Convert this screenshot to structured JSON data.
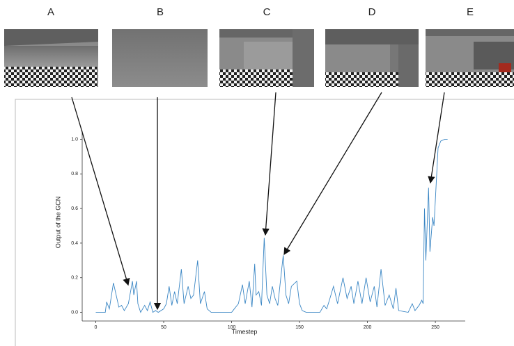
{
  "panels": [
    "A",
    "B",
    "C",
    "D",
    "E"
  ],
  "chart_data": {
    "type": "line",
    "x_label": "Timestep",
    "y_label": "Output of the GCN",
    "x": [
      0,
      7,
      8,
      10,
      13,
      15,
      17,
      19,
      21,
      24,
      27,
      28,
      30,
      31,
      33,
      36,
      38,
      40,
      42,
      44,
      46,
      50,
      52,
      54,
      56,
      58,
      60,
      63,
      65,
      68,
      70,
      72,
      75,
      77,
      80,
      82,
      85,
      100,
      102,
      105,
      108,
      110,
      113,
      115,
      117,
      118,
      120,
      122,
      124,
      126,
      128,
      130,
      132,
      134,
      138,
      140,
      142,
      144,
      148,
      150,
      152,
      155,
      165,
      168,
      170,
      172,
      175,
      178,
      182,
      185,
      188,
      190,
      193,
      196,
      199,
      202,
      205,
      207,
      210,
      213,
      216,
      219,
      221,
      223,
      230,
      233,
      235,
      238,
      240,
      241,
      242,
      243,
      245,
      246,
      248,
      249,
      251,
      252,
      254,
      257,
      259
    ],
    "series": [
      {
        "name": "GCN output",
        "color": "#3a86c4",
        "values": [
          0.0,
          0.0,
          0.06,
          0.02,
          0.17,
          0.1,
          0.03,
          0.04,
          0.01,
          0.05,
          0.18,
          0.1,
          0.18,
          0.05,
          0.0,
          0.04,
          0.01,
          0.06,
          0.0,
          0.01,
          0.0,
          0.02,
          0.05,
          0.15,
          0.04,
          0.12,
          0.05,
          0.25,
          0.05,
          0.15,
          0.08,
          0.1,
          0.3,
          0.05,
          0.12,
          0.02,
          0.0,
          0.0,
          0.02,
          0.05,
          0.16,
          0.05,
          0.18,
          0.03,
          0.28,
          0.1,
          0.12,
          0.04,
          0.43,
          0.1,
          0.05,
          0.15,
          0.08,
          0.04,
          0.33,
          0.1,
          0.05,
          0.15,
          0.18,
          0.05,
          0.01,
          0.0,
          0.0,
          0.04,
          0.02,
          0.07,
          0.15,
          0.05,
          0.2,
          0.08,
          0.15,
          0.05,
          0.18,
          0.05,
          0.2,
          0.06,
          0.15,
          0.03,
          0.25,
          0.04,
          0.1,
          0.02,
          0.14,
          0.01,
          0.0,
          0.05,
          0.01,
          0.04,
          0.07,
          0.05,
          0.6,
          0.3,
          0.72,
          0.35,
          0.55,
          0.5,
          0.8,
          0.95,
          0.99,
          1.0,
          1.0
        ]
      }
    ],
    "xlim": [
      -10,
      272
    ],
    "ylim": [
      -0.05,
      1.05
    ],
    "xticks": [
      0,
      50,
      100,
      150,
      200,
      250
    ],
    "yticks": [
      {
        "value": 0,
        "label": "0.0"
      },
      0.2,
      0.4,
      0.6,
      0.8,
      {
        "value": 1,
        "label": "1.0"
      }
    ]
  }
}
